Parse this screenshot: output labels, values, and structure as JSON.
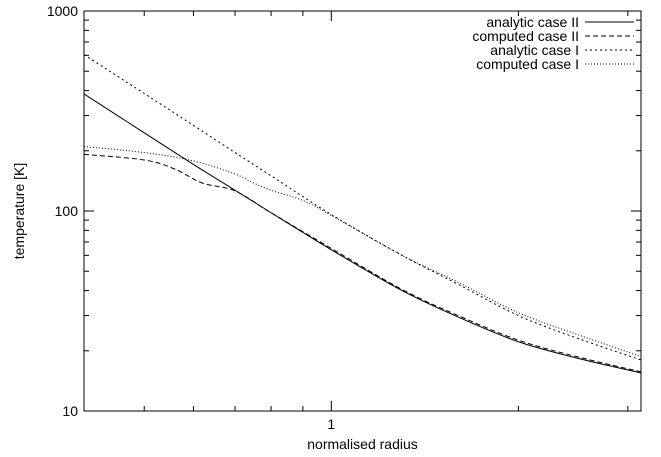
{
  "chart_data": {
    "type": "line",
    "xlabel": "normalised radius",
    "ylabel": "temperature [K]",
    "x_scale": "log",
    "y_scale": "log",
    "xlim": [
      0.4,
      3.15
    ],
    "ylim": [
      10,
      1000
    ],
    "grid": false,
    "legend_position": "top-right",
    "x_ticks": [
      {
        "value": 1,
        "label": "1"
      }
    ],
    "x_minor_ticks": [
      0.4,
      0.5,
      0.6,
      0.7,
      0.8,
      0.9,
      2,
      3
    ],
    "y_ticks": [
      {
        "value": 10,
        "label": "10"
      },
      {
        "value": 100,
        "label": "100"
      },
      {
        "value": 1000,
        "label": "1000"
      }
    ],
    "y_minor_ticks": [
      20,
      30,
      40,
      50,
      60,
      70,
      80,
      90,
      200,
      300,
      400,
      500,
      600,
      700,
      800,
      900
    ],
    "series": [
      {
        "name": "analytic case II",
        "dash": "solid",
        "x": [
          0.4,
          0.5,
          0.6,
          0.7,
          0.8,
          1.0,
          1.3,
          1.6,
          2.0,
          2.5,
          3.15
        ],
        "y": [
          385,
          246,
          171,
          127,
          98,
          64,
          40,
          29.5,
          22.2,
          18.3,
          15.5
        ]
      },
      {
        "name": "computed case II",
        "dash": "dashed",
        "x": [
          0.4,
          0.5,
          0.56,
          0.62,
          0.7,
          0.8,
          1.0,
          1.3,
          1.6,
          2.0,
          2.5,
          3.15
        ],
        "y": [
          192,
          180,
          162,
          138,
          126,
          98,
          65,
          40.5,
          30,
          22.6,
          18.6,
          15.7
        ]
      },
      {
        "name": "analytic case I",
        "dash": "dotted",
        "x": [
          0.4,
          0.5,
          0.6,
          0.7,
          0.8,
          1.0,
          1.3,
          1.6,
          2.0,
          2.5,
          3.15
        ],
        "y": [
          605,
          387,
          268,
          196,
          150,
          96,
          60,
          43,
          30,
          23,
          18
        ]
      },
      {
        "name": "computed case I",
        "dash": "fine-dotted",
        "x": [
          0.4,
          0.5,
          0.6,
          0.7,
          0.75,
          0.8,
          0.9,
          1.0,
          1.3,
          1.6,
          2.0,
          2.5,
          3.15
        ],
        "y": [
          210,
          196,
          178,
          153,
          138,
          127,
          113,
          95,
          60,
          44,
          31,
          24,
          18.7
        ]
      }
    ]
  }
}
